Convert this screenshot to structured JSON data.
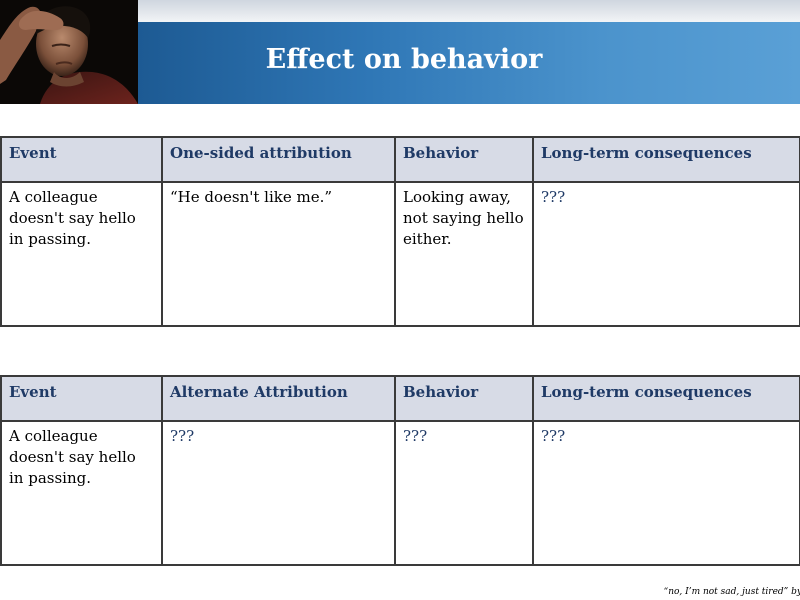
{
  "slide": {
    "title": "Effect on behavior",
    "photo_description": "",
    "credit": "“no, I’m not sad, just tired” by"
  },
  "table1": {
    "headers": [
      "Event",
      "One-sided attribution",
      "Behavior",
      "Long-term consequences"
    ],
    "row": [
      "A colleague doesn't say hello in passing.",
      "“He doesn't like me.”",
      "Looking away, not saying hello either.",
      "???"
    ]
  },
  "table2": {
    "headers": [
      "Event",
      "Alternate Attribution",
      "Behavior",
      "Long-term consequences"
    ],
    "row": [
      "A colleague doesn't say hello in passing.",
      "???",
      "???",
      "???"
    ]
  },
  "colors": {
    "header_band": "#2f77b6",
    "table_header_bg": "#d7dbe6",
    "table_header_text": "#1f3a66",
    "border": "#3a3a3a"
  }
}
